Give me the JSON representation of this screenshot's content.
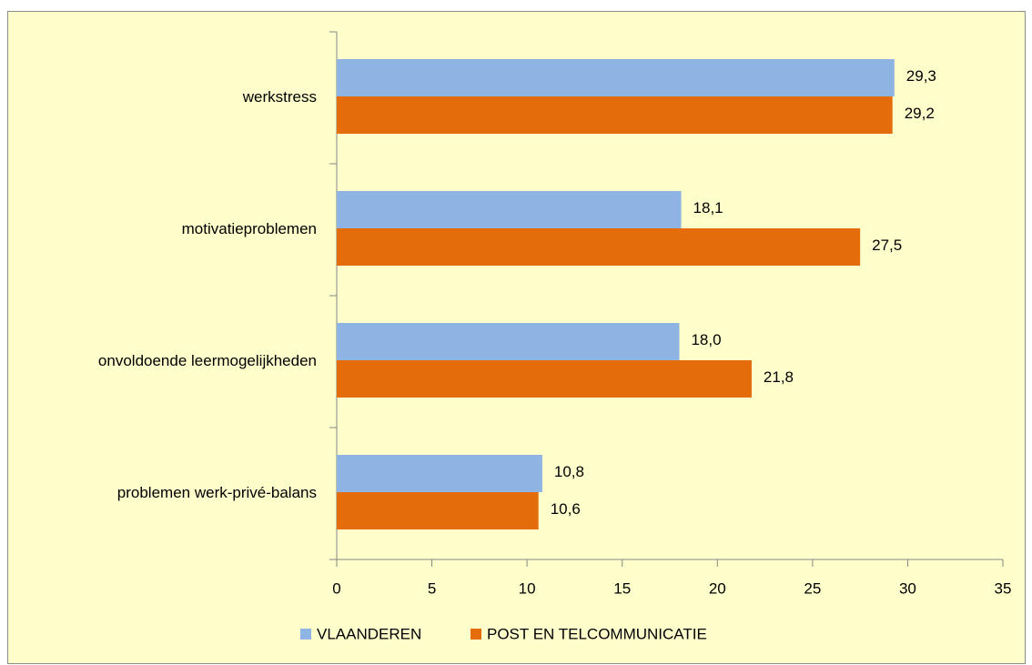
{
  "chart_data": {
    "type": "barh",
    "categories": [
      "werkstress",
      "motivatieproblemen",
      "onvoldoende leermogelijkheden",
      "problemen werk-privé-balans"
    ],
    "series": [
      {
        "name": "VLAANDEREN",
        "color": "#8eb4e3",
        "values": [
          29.3,
          18.1,
          18.0,
          10.8
        ],
        "value_labels": [
          "29,3",
          "18,1",
          "18,0",
          "10,8"
        ]
      },
      {
        "name": "POST EN TELCOMMUNICATIE",
        "color": "#e46c0a",
        "values": [
          29.2,
          27.5,
          21.8,
          10.6
        ],
        "value_labels": [
          "29,2",
          "27,5",
          "21,8",
          "10,6"
        ]
      }
    ],
    "xlim": [
      0,
      35
    ],
    "xticks": [
      0,
      5,
      10,
      15,
      20,
      25,
      30,
      35
    ],
    "legend": "bottom"
  }
}
